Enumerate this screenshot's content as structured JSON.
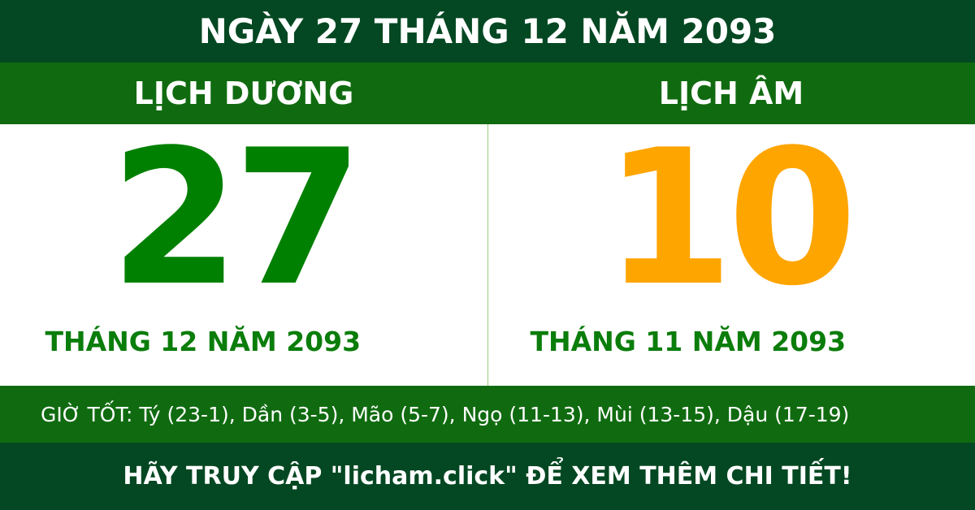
{
  "header": {
    "title": "NGÀY 27 THÁNG 12 NĂM 2093"
  },
  "solar": {
    "label": "LỊCH DƯƠNG",
    "day": "27",
    "month_year": "THÁNG 12 NĂM 2093"
  },
  "lunar": {
    "label": "LỊCH ÂM",
    "day": "10",
    "month_year": "THÁNG 11 NĂM 2093"
  },
  "good_hours": "GIỜ TỐT: Tý (23-1), Dần (3-5), Mão (5-7), Ngọ (11-13), Mùi (13-15), Dậu (17-19)",
  "footer": {
    "cta": "HÃY TRUY CẬP \"licham.click\" ĐỂ XEM THÊM CHI TIẾT!"
  },
  "colors": {
    "dark_green": "#034822",
    "mid_green": "#106b10",
    "solar_day": "#008000",
    "lunar_day": "#ffa500"
  }
}
